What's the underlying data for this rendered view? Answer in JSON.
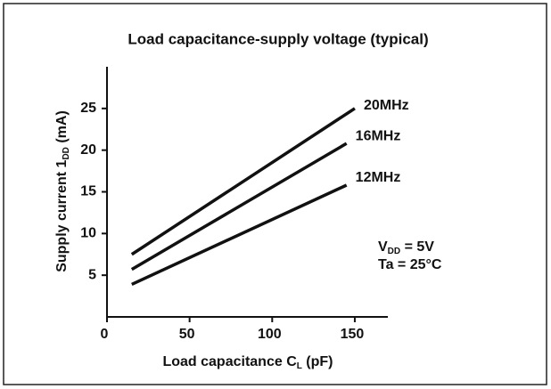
{
  "chart_data": {
    "type": "line",
    "title": "Load capacitance-supply voltage (typical)",
    "xlabel": {
      "main": "Load capacitance C",
      "sub": "L",
      "tail": " (pF)"
    },
    "ylabel": {
      "main": "Supply current 1",
      "sub": "DD",
      "tail": " (mA)"
    },
    "annotation": {
      "line1": {
        "main": "V",
        "sub": "DD",
        "tail": " = 5V"
      },
      "line2": "Ta = 25°C"
    },
    "series": [
      {
        "name": "20MHz",
        "color": "#111111",
        "x": [
          15,
          150
        ],
        "values": [
          7.5,
          25
        ]
      },
      {
        "name": "16MHz",
        "color": "#111111",
        "x": [
          15,
          145
        ],
        "values": [
          5.7,
          20.8
        ]
      },
      {
        "name": "12MHz",
        "color": "#111111",
        "x": [
          15,
          145
        ],
        "values": [
          3.9,
          15.8
        ]
      }
    ],
    "xlim": [
      0,
      170
    ],
    "xticks": [
      0,
      50,
      100,
      150
    ],
    "ylim": [
      0,
      30
    ],
    "yticks": [
      5,
      10,
      15,
      20,
      25
    ]
  }
}
